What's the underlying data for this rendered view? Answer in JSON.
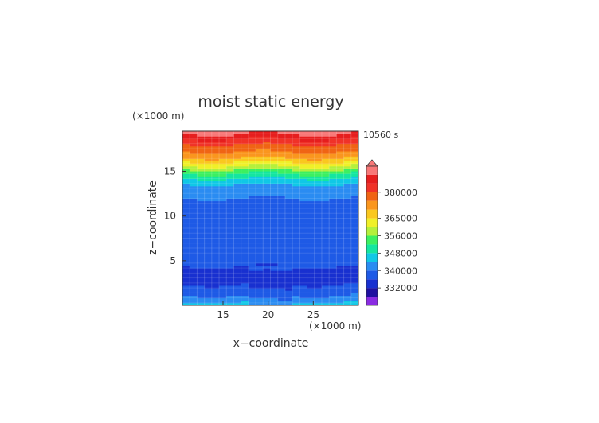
{
  "chart_data": {
    "type": "heatmap",
    "title": "moist static energy",
    "time_label": "10560 s",
    "xlabel": "x−coordinate",
    "ylabel": "z−coordinate",
    "x_unit": "(×1000 m)",
    "y_unit": "(×1000 m)",
    "xlim": [
      10.5,
      30
    ],
    "ylim": [
      0,
      19.5
    ],
    "x_ticks": [
      15,
      20,
      25
    ],
    "y_ticks": [
      5,
      10,
      15
    ],
    "grid": true,
    "colorbar": {
      "placement": "right",
      "levels": [
        328000,
        332000,
        336000,
        340000,
        344000,
        348000,
        352000,
        356000,
        360000,
        365000,
        370000,
        375000,
        380000,
        385000,
        390000
      ],
      "colors": [
        "#8a2be2",
        "#1f10a0",
        "#1830d0",
        "#1e5ae6",
        "#2a8cf2",
        "#10c8e6",
        "#14e6a0",
        "#3cf060",
        "#b4f03c",
        "#f0f028",
        "#fac81e",
        "#fa961e",
        "#f06414",
        "#f03228",
        "#e61e1e",
        "#f87878"
      ],
      "labels": [
        "332000",
        "340000",
        "348000",
        "356000",
        "365000",
        "380000"
      ]
    },
    "profile": [
      {
        "z": 0.2,
        "value": 345000
      },
      {
        "z": 0.8,
        "value": 342000
      },
      {
        "z": 1.5,
        "value": 338000
      },
      {
        "z": 2.5,
        "value": 335500
      },
      {
        "z": 3.2,
        "value": 333000
      },
      {
        "z": 4.0,
        "value": 335500
      },
      {
        "z": 6.0,
        "value": 338000
      },
      {
        "z": 9.0,
        "value": 339000
      },
      {
        "z": 11.0,
        "value": 338500
      },
      {
        "z": 12.0,
        "value": 340000
      },
      {
        "z": 13.0,
        "value": 342000
      },
      {
        "z": 13.8,
        "value": 345000
      },
      {
        "z": 14.4,
        "value": 349000
      },
      {
        "z": 15.0,
        "value": 354000
      },
      {
        "z": 15.6,
        "value": 360000
      },
      {
        "z": 16.3,
        "value": 368000
      },
      {
        "z": 17.0,
        "value": 374000
      },
      {
        "z": 17.7,
        "value": 378000
      },
      {
        "z": 18.3,
        "value": 382000
      },
      {
        "z": 18.9,
        "value": 387000
      },
      {
        "z": 19.4,
        "value": 392000
      }
    ]
  }
}
